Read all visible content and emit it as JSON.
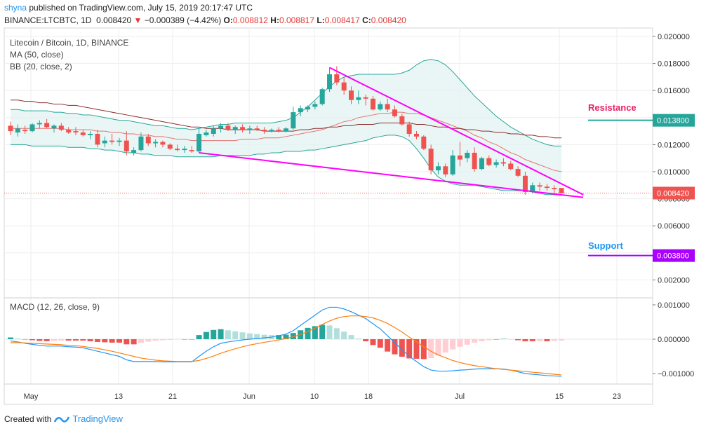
{
  "header": {
    "user": "shyna",
    "published_text": "published on TradingView.com, July 15, 2019 20:17:47 UTC",
    "symbol": "BINANCE:LTCBTC, 1D",
    "last": "0.008420",
    "arrow": "▼",
    "change": "−0.000389 (−4.42%)",
    "o_label": "O:",
    "o": "0.008812",
    "h_label": "H:",
    "h": "0.008817",
    "l_label": "L:",
    "l": "0.008417",
    "c_label": "C:",
    "c": "0.008420"
  },
  "footer": {
    "created_with": "Created with",
    "brand": "TradingView"
  },
  "chart_data": {
    "type": "candlestick",
    "title": "Litecoin / Bitcoin, 1D, BINANCE",
    "indicators": [
      "MA (50, close)",
      "BB (20, close, 2)"
    ],
    "macd_label": "MACD (12, 26, close, 9)",
    "x_ticks": [
      "May",
      "13",
      "21",
      "Jun",
      "10",
      "18",
      "Jul",
      "15",
      "23"
    ],
    "y_ticks": [
      "0.020000",
      "0.018000",
      "0.016000",
      "0.014000",
      "0.012000",
      "0.010000",
      "0.008000",
      "0.006000",
      "0.004000",
      "0.002000"
    ],
    "ylim": [
      0,
      0.0205
    ],
    "macd_ticks": [
      "0.001000",
      "0.000000",
      "−0.001000"
    ],
    "macd_ylim": [
      -0.00125,
      0.00115
    ],
    "resistance": {
      "label": "Resistance",
      "value": "0.013800",
      "color": "#e91e63"
    },
    "support": {
      "label": "Support",
      "value": "0.003800",
      "color": "#2196f3"
    },
    "last_price": {
      "value": "0.008420",
      "color": "#ef5350"
    },
    "colors": {
      "up": "#26a69a",
      "down": "#ef5350",
      "ma": "#8b2e2e",
      "bb_mid": "#e57373",
      "bb_band": "#26a69a",
      "bb_fill": "#e0f2f1",
      "trend": "#ff00ff",
      "macd": "#2196f3",
      "signal": "#ff7f0e"
    },
    "candles_ohlc": [
      [
        0.0134,
        0.0137,
        0.0127,
        0.013
      ],
      [
        0.0129,
        0.0135,
        0.0126,
        0.0132
      ],
      [
        0.0131,
        0.0134,
        0.0128,
        0.013
      ],
      [
        0.013,
        0.0136,
        0.0129,
        0.0135
      ],
      [
        0.0135,
        0.0138,
        0.0132,
        0.0136
      ],
      [
        0.0136,
        0.0139,
        0.0132,
        0.0133
      ],
      [
        0.0132,
        0.0135,
        0.0129,
        0.0134
      ],
      [
        0.0134,
        0.0136,
        0.013,
        0.0131
      ],
      [
        0.0131,
        0.0133,
        0.0128,
        0.0129
      ],
      [
        0.013,
        0.0133,
        0.0127,
        0.0129
      ],
      [
        0.0129,
        0.0131,
        0.0126,
        0.0127
      ],
      [
        0.0127,
        0.013,
        0.0124,
        0.0128
      ],
      [
        0.0128,
        0.0131,
        0.0118,
        0.012
      ],
      [
        0.0121,
        0.0126,
        0.0118,
        0.0123
      ],
      [
        0.0123,
        0.0128,
        0.012,
        0.0122
      ],
      [
        0.0122,
        0.0125,
        0.0119,
        0.0123
      ],
      [
        0.0123,
        0.013,
        0.0112,
        0.0115
      ],
      [
        0.0114,
        0.0118,
        0.0112,
        0.0116
      ],
      [
        0.0116,
        0.0129,
        0.0115,
        0.0126
      ],
      [
        0.0126,
        0.0128,
        0.0119,
        0.0121
      ],
      [
        0.0121,
        0.0124,
        0.0118,
        0.0122
      ],
      [
        0.0122,
        0.0123,
        0.0118,
        0.012
      ],
      [
        0.012,
        0.0121,
        0.0116,
        0.0117
      ],
      [
        0.0117,
        0.012,
        0.0115,
        0.0116
      ],
      [
        0.0116,
        0.0119,
        0.0114,
        0.0117
      ],
      [
        0.0116,
        0.0119,
        0.0114,
        0.0115
      ],
      [
        0.0115,
        0.0132,
        0.0114,
        0.0128
      ],
      [
        0.0127,
        0.0131,
        0.0126,
        0.0129
      ],
      [
        0.0128,
        0.0134,
        0.0126,
        0.0132
      ],
      [
        0.0132,
        0.0136,
        0.0129,
        0.0134
      ],
      [
        0.0134,
        0.0136,
        0.013,
        0.0131
      ],
      [
        0.0131,
        0.0134,
        0.0128,
        0.0133
      ],
      [
        0.0133,
        0.0135,
        0.0129,
        0.0131
      ],
      [
        0.0131,
        0.0134,
        0.0128,
        0.0132
      ],
      [
        0.0132,
        0.0134,
        0.013,
        0.0131
      ],
      [
        0.0131,
        0.0133,
        0.0128,
        0.013
      ],
      [
        0.013,
        0.0132,
        0.0129,
        0.0131
      ],
      [
        0.0131,
        0.0133,
        0.0129,
        0.013
      ],
      [
        0.013,
        0.0133,
        0.0129,
        0.0132
      ],
      [
        0.0132,
        0.0148,
        0.0131,
        0.0144
      ],
      [
        0.0144,
        0.0149,
        0.0141,
        0.0147
      ],
      [
        0.0146,
        0.0149,
        0.0144,
        0.0148
      ],
      [
        0.0148,
        0.0152,
        0.0146,
        0.015
      ],
      [
        0.015,
        0.0162,
        0.0149,
        0.0161
      ],
      [
        0.0161,
        0.0177,
        0.0159,
        0.0172
      ],
      [
        0.0172,
        0.0178,
        0.0164,
        0.0166
      ],
      [
        0.0166,
        0.017,
        0.0157,
        0.016
      ],
      [
        0.016,
        0.0163,
        0.015,
        0.0153
      ],
      [
        0.0153,
        0.016,
        0.015,
        0.0155
      ],
      [
        0.0155,
        0.0157,
        0.0149,
        0.0154
      ],
      [
        0.0154,
        0.0156,
        0.0145,
        0.0146
      ],
      [
        0.0146,
        0.0152,
        0.0145,
        0.015
      ],
      [
        0.015,
        0.0154,
        0.0144,
        0.0146
      ],
      [
        0.0146,
        0.0149,
        0.014,
        0.0141
      ],
      [
        0.0141,
        0.0143,
        0.0134,
        0.0135
      ],
      [
        0.0135,
        0.0137,
        0.0126,
        0.0128
      ],
      [
        0.0128,
        0.013,
        0.0124,
        0.0126
      ],
      [
        0.0126,
        0.0127,
        0.0116,
        0.0117
      ],
      [
        0.0117,
        0.012,
        0.0098,
        0.0101
      ],
      [
        0.0101,
        0.0107,
        0.0098,
        0.0104
      ],
      [
        0.0104,
        0.0106,
        0.0096,
        0.0098
      ],
      [
        0.0098,
        0.0116,
        0.0097,
        0.0112
      ],
      [
        0.0112,
        0.0122,
        0.0104,
        0.0109
      ],
      [
        0.011,
        0.0116,
        0.0107,
        0.0114
      ],
      [
        0.0114,
        0.0118,
        0.01,
        0.0102
      ],
      [
        0.0102,
        0.0111,
        0.0101,
        0.011
      ],
      [
        0.011,
        0.0112,
        0.0104,
        0.0105
      ],
      [
        0.0105,
        0.0109,
        0.0103,
        0.0107
      ],
      [
        0.0107,
        0.011,
        0.0104,
        0.0106
      ],
      [
        0.0106,
        0.0108,
        0.0101,
        0.0102
      ],
      [
        0.0102,
        0.0104,
        0.0096,
        0.0097
      ],
      [
        0.0097,
        0.01,
        0.0083,
        0.0085
      ],
      [
        0.0085,
        0.0092,
        0.0084,
        0.009
      ],
      [
        0.009,
        0.0092,
        0.0086,
        0.0089
      ],
      [
        0.0089,
        0.0091,
        0.0086,
        0.0088
      ],
      [
        0.0088,
        0.009,
        0.0084,
        0.0087
      ],
      [
        0.0088,
        0.0088,
        0.0084,
        0.0084
      ]
    ],
    "ma50": [
      0.0153,
      0.0153,
      0.0152,
      0.0152,
      0.0151,
      0.0151,
      0.015,
      0.015,
      0.0149,
      0.0149,
      0.0148,
      0.0147,
      0.0146,
      0.0145,
      0.0144,
      0.0143,
      0.0142,
      0.0141,
      0.014,
      0.0139,
      0.0138,
      0.0137,
      0.0136,
      0.0135,
      0.0134,
      0.0133,
      0.0133,
      0.0132,
      0.0132,
      0.0132,
      0.0131,
      0.0131,
      0.0131,
      0.0131,
      0.0131,
      0.013,
      0.013,
      0.013,
      0.013,
      0.013,
      0.0131,
      0.0131,
      0.0132,
      0.0132,
      0.0133,
      0.0133,
      0.0134,
      0.0134,
      0.0135,
      0.0135,
      0.0135,
      0.0136,
      0.0136,
      0.0136,
      0.0136,
      0.0136,
      0.0135,
      0.0135,
      0.0134,
      0.0133,
      0.0133,
      0.0132,
      0.0132,
      0.0131,
      0.0131,
      0.013,
      0.013,
      0.0129,
      0.0129,
      0.0128,
      0.0128,
      0.0127,
      0.0127,
      0.0126,
      0.0126,
      0.0125,
      0.0125
    ],
    "bb_mid": [
      0.0132,
      0.0132,
      0.0132,
      0.0132,
      0.0132,
      0.0132,
      0.0132,
      0.0132,
      0.0131,
      0.0131,
      0.0131,
      0.0131,
      0.013,
      0.013,
      0.0129,
      0.0129,
      0.0128,
      0.0128,
      0.0127,
      0.0127,
      0.0126,
      0.0126,
      0.0125,
      0.0124,
      0.0124,
      0.0123,
      0.0123,
      0.0123,
      0.0123,
      0.0123,
      0.0123,
      0.0123,
      0.0124,
      0.0124,
      0.0124,
      0.0125,
      0.0125,
      0.0125,
      0.0126,
      0.0127,
      0.0128,
      0.0129,
      0.013,
      0.0131,
      0.0133,
      0.0135,
      0.0137,
      0.0138,
      0.014,
      0.0141,
      0.0142,
      0.0143,
      0.0143,
      0.0144,
      0.0144,
      0.0143,
      0.0143,
      0.0142,
      0.014,
      0.0138,
      0.0136,
      0.0134,
      0.0132,
      0.013,
      0.0127,
      0.0125,
      0.0122,
      0.012,
      0.0117,
      0.0114,
      0.0112,
      0.0109,
      0.0107,
      0.0105,
      0.0103,
      0.0101,
      0.01
    ],
    "bb_upper": [
      0.0146,
      0.0146,
      0.0145,
      0.0145,
      0.0145,
      0.0145,
      0.0144,
      0.0144,
      0.0143,
      0.0143,
      0.0142,
      0.0142,
      0.0141,
      0.014,
      0.0139,
      0.0138,
      0.0138,
      0.0137,
      0.0136,
      0.0135,
      0.0134,
      0.0134,
      0.0133,
      0.0132,
      0.0132,
      0.0131,
      0.0132,
      0.0133,
      0.0134,
      0.0135,
      0.0135,
      0.0136,
      0.0136,
      0.0136,
      0.0136,
      0.0136,
      0.0136,
      0.0137,
      0.0138,
      0.014,
      0.0144,
      0.0148,
      0.0153,
      0.0158,
      0.0163,
      0.0167,
      0.017,
      0.0171,
      0.0172,
      0.0172,
      0.0172,
      0.0172,
      0.0172,
      0.0172,
      0.0173,
      0.0175,
      0.0179,
      0.0182,
      0.0183,
      0.0182,
      0.0179,
      0.0174,
      0.0168,
      0.0162,
      0.0156,
      0.0151,
      0.0146,
      0.0141,
      0.0137,
      0.0133,
      0.013,
      0.0127,
      0.0124,
      0.0122,
      0.012,
      0.0119,
      0.0119
    ],
    "bb_lower": [
      0.012,
      0.012,
      0.012,
      0.0119,
      0.0119,
      0.0119,
      0.0119,
      0.0119,
      0.0118,
      0.0118,
      0.0118,
      0.0117,
      0.0117,
      0.0116,
      0.0116,
      0.0115,
      0.0114,
      0.0114,
      0.0113,
      0.0113,
      0.0112,
      0.0112,
      0.0112,
      0.0111,
      0.0111,
      0.0111,
      0.0111,
      0.0111,
      0.0111,
      0.0112,
      0.0112,
      0.0112,
      0.0112,
      0.0112,
      0.0113,
      0.0113,
      0.0114,
      0.0114,
      0.0115,
      0.0115,
      0.0115,
      0.0116,
      0.0116,
      0.0117,
      0.0118,
      0.0119,
      0.012,
      0.0121,
      0.0122,
      0.0123,
      0.0125,
      0.0126,
      0.0127,
      0.0127,
      0.0126,
      0.0123,
      0.0117,
      0.011,
      0.0102,
      0.0096,
      0.0093,
      0.0091,
      0.009,
      0.009,
      0.009,
      0.0089,
      0.0088,
      0.0087,
      0.0086,
      0.0086,
      0.0086,
      0.0086,
      0.0085,
      0.0084,
      0.0083,
      0.0083,
      0.0083
    ],
    "trend_upper": [
      [
        44,
        0.0177
      ],
      [
        79,
        0.0083
      ]
    ],
    "trend_lower": [
      [
        26,
        0.0114
      ],
      [
        79,
        0.0081
      ]
    ],
    "macd": [
      -5e-05,
      -8e-05,
      -0.00012,
      -0.00015,
      -0.00018,
      -0.0002,
      -0.0002,
      -0.0002,
      -0.00022,
      -0.00023,
      -0.00025,
      -0.0003,
      -0.00035,
      -0.0004,
      -0.00045,
      -0.0005,
      -0.0006,
      -0.00065,
      -0.00065,
      -0.00065,
      -0.00065,
      -0.00066,
      -0.00066,
      -0.00066,
      -0.00066,
      -0.00066,
      -0.0005,
      -0.00035,
      -0.00022,
      -0.00012,
      -8e-05,
      -5e-05,
      -2e-05,
      0.0,
      2e-05,
      4e-05,
      6e-05,
      0.0001,
      0.00015,
      0.00025,
      0.0004,
      0.00055,
      0.0007,
      0.00085,
      0.00093,
      0.00093,
      0.00088,
      0.0008,
      0.0007,
      0.0006,
      0.00045,
      0.0003,
      0.0001,
      -0.0001,
      -0.0003,
      -0.0005,
      -0.00065,
      -0.0008,
      -0.0009,
      -0.00093,
      -0.00093,
      -0.00092,
      -0.0009,
      -0.00089,
      -0.00087,
      -0.00086,
      -0.00086,
      -0.00086,
      -0.00087,
      -0.0009,
      -0.00095,
      -0.001,
      -0.00102,
      -0.00104,
      -0.00106,
      -0.00107,
      -0.00108
    ],
    "signal": [
      -0.0001,
      -0.0001,
      -0.00011,
      -0.00012,
      -0.00013,
      -0.00014,
      -0.00015,
      -0.00016,
      -0.00018,
      -0.00019,
      -0.00021,
      -0.00024,
      -0.00027,
      -0.00031,
      -0.00035,
      -0.0004,
      -0.00045,
      -0.0005,
      -0.00055,
      -0.00058,
      -0.00061,
      -0.00063,
      -0.00064,
      -0.00065,
      -0.00065,
      -0.00065,
      -0.00062,
      -0.00056,
      -0.00049,
      -0.00041,
      -0.00034,
      -0.00028,
      -0.00022,
      -0.00017,
      -0.00013,
      -9e-05,
      -6e-05,
      -2e-05,
      2e-05,
      7e-05,
      0.00014,
      0.00022,
      0.00032,
      0.00043,
      0.00053,
      0.00061,
      0.00066,
      0.00068,
      0.00068,
      0.00066,
      0.00062,
      0.00055,
      0.00046,
      0.00034,
      0.00021,
      6e-05,
      -8e-05,
      -0.00022,
      -0.00035,
      -0.00046,
      -0.00054,
      -0.00062,
      -0.00068,
      -0.00073,
      -0.00077,
      -0.0008,
      -0.00083,
      -0.00086,
      -0.00088,
      -0.0009,
      -0.00092,
      -0.00094,
      -0.00096,
      -0.00098,
      -0.001,
      -0.00102,
      -0.00104
    ]
  }
}
